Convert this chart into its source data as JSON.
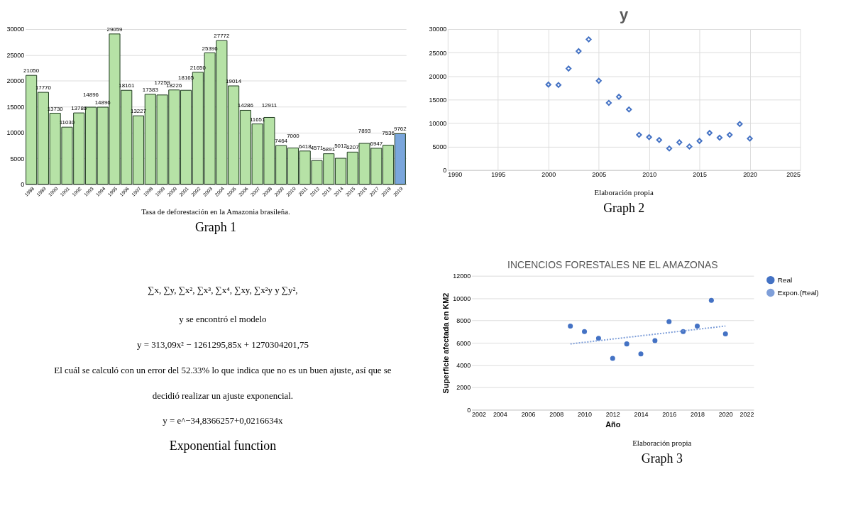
{
  "chart_data": [
    {
      "type": "bar",
      "categories": [
        "1988",
        "1989",
        "1990",
        "1991",
        "1992",
        "1993",
        "1994",
        "1995",
        "1996",
        "1997",
        "1998",
        "1999",
        "2000",
        "2001",
        "2002",
        "2003",
        "2004",
        "2005",
        "2006",
        "2007",
        "2008",
        "2009",
        "2010",
        "2011",
        "2012",
        "2013",
        "2014",
        "2015",
        "2016",
        "2017",
        "2018",
        "2019"
      ],
      "values": [
        21050,
        17770,
        13730,
        11030,
        13786,
        14896,
        14896,
        29059,
        18161,
        13227,
        17383,
        17259,
        18226,
        18165,
        21650,
        25396,
        27772,
        19014,
        14286,
        11651,
        12911,
        7464,
        7000,
        6418,
        4571,
        5891,
        5012,
        6207,
        7893,
        6947,
        7536,
        9762
      ],
      "colors": [
        "#b6e2a6",
        "#b6e2a6",
        "#b6e2a6",
        "#b6e2a6",
        "#b6e2a6",
        "#b6e2a6",
        "#b6e2a6",
        "#b6e2a6",
        "#b6e2a6",
        "#b6e2a6",
        "#b6e2a6",
        "#b6e2a6",
        "#b6e2a6",
        "#b6e2a6",
        "#b6e2a6",
        "#b6e2a6",
        "#b6e2a6",
        "#b6e2a6",
        "#b6e2a6",
        "#b6e2a6",
        "#b6e2a6",
        "#b6e2a6",
        "#b6e2a6",
        "#b6e2a6",
        "#b6e2a6",
        "#b6e2a6",
        "#b6e2a6",
        "#b6e2a6",
        "#b6e2a6",
        "#b6e2a6",
        "#b6e2a6",
        "#7aa6dc"
      ],
      "ylim": [
        0,
        30000
      ],
      "yticks": [
        0,
        5000,
        10000,
        15000,
        20000,
        25000,
        30000
      ],
      "grid": "y",
      "data_labels": true,
      "annotations": [
        "Tasa de deforestación en la Amazonia brasileña.",
        "Graph 1"
      ]
    },
    {
      "type": "scatter",
      "title": "y",
      "x": [
        2000,
        2001,
        2002,
        2003,
        2004,
        2005,
        2006,
        2007,
        2008,
        2009,
        2010,
        2011,
        2012,
        2013,
        2014,
        2015,
        2016,
        2017,
        2018,
        2019,
        2020
      ],
      "values": [
        18200,
        18100,
        21600,
        25300,
        27800,
        19000,
        14300,
        15600,
        12900,
        7500,
        7000,
        6400,
        4600,
        5900,
        5000,
        6200,
        7900,
        6900,
        7500,
        9800,
        6700
      ],
      "color": "#4472c4",
      "marker": "diamond",
      "xlim": [
        1990,
        2025
      ],
      "xticks": [
        1990,
        1995,
        2000,
        2005,
        2010,
        2015,
        2020,
        2025
      ],
      "ylim": [
        0,
        30000
      ],
      "yticks": [
        0,
        5000,
        10000,
        15000,
        20000,
        25000,
        30000
      ],
      "grid": true,
      "annotations": [
        "Elaboración propia",
        "Graph 2"
      ]
    },
    {
      "type": "other",
      "annotations": [
        "∑x, ∑y, ∑x², ∑x³, ∑x⁴, ∑xy, ∑x²y y ∑y²,",
        "y se encontró el modelo",
        "y = 313,09x² − 1261295,85x + 1270304201,75",
        "El cuál se calculó con un error del 52.33% lo que indica que no es un buen ajuste, así que se",
        "decidió realizar un ajuste exponencial.",
        "y = e^−34,8366257+0,0216634x",
        "Exponential function"
      ]
    },
    {
      "type": "scatter",
      "title": "INCENCIOS FORESTALES NE EL AMAZONAS",
      "xlabel": "Año",
      "ylabel": "Superficie afectada en KM2",
      "marker": "circle",
      "series": [
        {
          "name": "Real",
          "color": "#4472c4",
          "x": [
            2009,
            2010,
            2011,
            2012,
            2013,
            2014,
            2015,
            2016,
            2017,
            2018,
            2019,
            2020
          ],
          "values": [
            7500,
            7000,
            6400,
            4600,
            5900,
            5000,
            6200,
            7900,
            7000,
            7500,
            9800,
            6800
          ]
        },
        {
          "name": "Expon.(Real)",
          "type": "line",
          "marker": "none",
          "line_style": "dotted",
          "color": "#7f9fd9",
          "x": [
            2009,
            2020
          ],
          "values": [
            5900,
            7500
          ]
        }
      ],
      "xlim": [
        2002,
        2022
      ],
      "xticks": [
        2002,
        2004,
        2006,
        2008,
        2010,
        2012,
        2014,
        2016,
        2018,
        2020,
        2022
      ],
      "ylim": [
        0,
        12000
      ],
      "yticks": [
        0,
        2000,
        4000,
        6000,
        8000,
        10000,
        12000
      ],
      "grid": "y",
      "legend": "right",
      "annotations": [
        "Elaboración propia",
        "Graph 3"
      ]
    }
  ]
}
